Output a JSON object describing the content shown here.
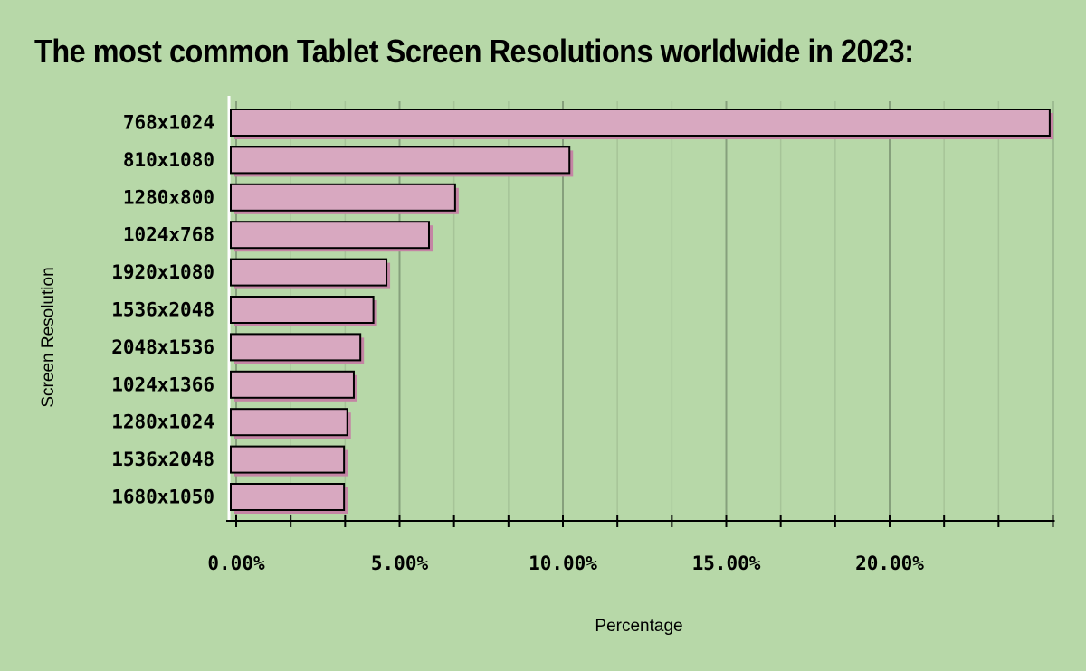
{
  "chart_data": {
    "type": "bar",
    "orientation": "horizontal",
    "title": "The most common Tablet Screen Resolutions worldwide in 2023:",
    "xlabel": "Percentage",
    "ylabel": "Screen Resolution",
    "categories": [
      "768x1024",
      "810x1080",
      "1280x800",
      "1024x768",
      "1920x1080",
      "1536x2048",
      "2048x1536",
      "1024x1366",
      "1280x1024",
      "1536x2048",
      "1680x1050"
    ],
    "values": [
      24.9,
      10.2,
      6.7,
      5.9,
      4.6,
      4.2,
      3.8,
      3.6,
      3.4,
      3.3,
      3.3
    ],
    "xlim": [
      0,
      25
    ],
    "x_ticks": [
      0,
      5,
      10,
      15,
      20
    ],
    "x_tick_labels": [
      "0.00%",
      "5.00%",
      "10.00%",
      "15.00%",
      "20.00%"
    ],
    "grid": "vertical",
    "colors": {
      "background": "#b7d8a8",
      "bar": "#d8a8c0",
      "bar_shadow": "#c484a4",
      "bar_stroke": "#000000",
      "grid": "#8aa080"
    }
  }
}
